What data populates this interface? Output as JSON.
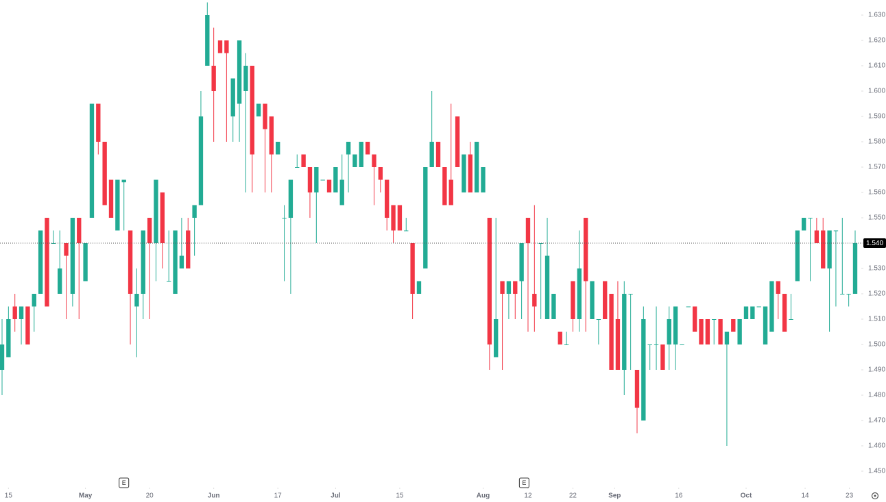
{
  "chart_data": {
    "type": "candlestick",
    "up_color": "#22ab94",
    "down_color": "#f23645",
    "open": [
      1.49,
      1.495,
      1.515,
      1.51,
      1.515,
      1.515,
      1.52,
      1.55,
      1.54,
      1.52,
      1.54,
      1.52,
      1.55,
      1.525,
      1.55,
      1.595,
      1.58,
      1.565,
      1.545,
      1.564,
      1.545,
      1.515,
      1.52,
      1.55,
      1.54,
      1.56,
      1.525,
      1.52,
      1.53,
      1.545,
      1.55,
      1.555,
      1.61,
      1.61,
      1.62,
      1.62,
      1.59,
      1.595,
      1.6,
      1.61,
      1.59,
      1.595,
      1.59,
      1.575,
      1.55,
      1.55,
      1.57,
      1.575,
      1.57,
      1.56,
      1.565,
      1.565,
      1.56,
      1.555,
      1.575,
      1.57,
      1.57,
      1.58,
      1.575,
      1.57,
      1.565,
      1.555,
      1.555,
      1.545,
      1.54,
      1.52,
      1.53,
      1.57,
      1.58,
      1.57,
      1.565,
      1.59,
      1.56,
      1.575,
      1.56,
      1.56,
      1.55,
      1.495,
      1.525,
      1.52,
      1.525,
      1.525,
      1.55,
      1.52,
      1.54,
      1.51,
      1.51,
      1.505,
      1.5,
      1.525,
      1.51,
      1.55,
      1.51,
      1.51,
      1.525,
      1.52,
      1.51,
      1.49,
      1.52,
      1.49,
      1.47,
      1.5,
      1.5,
      1.5,
      1.5,
      1.5,
      1.5,
      1.515,
      1.515,
      1.51,
      1.51,
      1.51,
      1.51,
      1.5,
      1.51,
      1.5,
      1.51,
      1.51,
      1.515,
      1.5,
      1.505,
      1.525,
      1.52,
      1.51,
      1.525,
      1.545,
      1.55,
      1.545,
      1.545,
      1.53,
      1.545,
      1.52,
      1.52,
      1.52
    ],
    "high": [
      1.51,
      1.515,
      1.52,
      1.515,
      1.515,
      1.52,
      1.545,
      1.55,
      1.545,
      1.545,
      1.54,
      1.55,
      1.55,
      1.54,
      1.595,
      1.595,
      1.58,
      1.565,
      1.565,
      1.565,
      1.545,
      1.53,
      1.545,
      1.55,
      1.565,
      1.56,
      1.545,
      1.545,
      1.55,
      1.55,
      1.555,
      1.6,
      1.635,
      1.625,
      1.62,
      1.62,
      1.605,
      1.62,
      1.615,
      1.61,
      1.595,
      1.595,
      1.59,
      1.58,
      1.555,
      1.565,
      1.575,
      1.575,
      1.57,
      1.57,
      1.565,
      1.565,
      1.57,
      1.575,
      1.58,
      1.575,
      1.58,
      1.58,
      1.575,
      1.57,
      1.565,
      1.555,
      1.555,
      1.55,
      1.54,
      1.525,
      1.57,
      1.6,
      1.58,
      1.57,
      1.595,
      1.59,
      1.575,
      1.58,
      1.58,
      1.57,
      1.55,
      1.55,
      1.525,
      1.525,
      1.525,
      1.54,
      1.55,
      1.555,
      1.54,
      1.55,
      1.52,
      1.505,
      1.505,
      1.525,
      1.545,
      1.55,
      1.525,
      1.51,
      1.525,
      1.52,
      1.525,
      1.525,
      1.52,
      1.49,
      1.515,
      1.5,
      1.515,
      1.5,
      1.515,
      1.515,
      1.5,
      1.515,
      1.515,
      1.51,
      1.51,
      1.51,
      1.51,
      1.505,
      1.51,
      1.51,
      1.515,
      1.515,
      1.515,
      1.515,
      1.525,
      1.525,
      1.52,
      1.52,
      1.545,
      1.55,
      1.55,
      1.55,
      1.55,
      1.545,
      1.545,
      1.55,
      1.52,
      1.545
    ],
    "low": [
      1.48,
      1.495,
      1.505,
      1.5,
      1.5,
      1.505,
      1.52,
      1.515,
      1.54,
      1.52,
      1.51,
      1.515,
      1.51,
      1.525,
      1.55,
      1.575,
      1.555,
      1.55,
      1.545,
      1.545,
      1.5,
      1.495,
      1.51,
      1.51,
      1.525,
      1.53,
      1.525,
      1.52,
      1.53,
      1.53,
      1.535,
      1.555,
      1.61,
      1.58,
      1.615,
      1.58,
      1.58,
      1.58,
      1.56,
      1.56,
      1.59,
      1.56,
      1.56,
      1.575,
      1.525,
      1.52,
      1.57,
      1.57,
      1.55,
      1.54,
      1.565,
      1.56,
      1.56,
      1.555,
      1.56,
      1.57,
      1.57,
      1.575,
      1.555,
      1.56,
      1.545,
      1.54,
      1.545,
      1.545,
      1.51,
      1.52,
      1.53,
      1.57,
      1.57,
      1.555,
      1.555,
      1.57,
      1.56,
      1.56,
      1.56,
      1.56,
      1.49,
      1.495,
      1.49,
      1.51,
      1.51,
      1.51,
      1.505,
      1.505,
      1.51,
      1.51,
      1.51,
      1.5,
      1.5,
      1.505,
      1.505,
      1.505,
      1.51,
      1.5,
      1.51,
      1.49,
      1.49,
      1.48,
      1.49,
      1.465,
      1.47,
      1.49,
      1.49,
      1.49,
      1.49,
      1.49,
      1.5,
      1.515,
      1.505,
      1.5,
      1.5,
      1.5,
      1.5,
      1.46,
      1.505,
      1.5,
      1.51,
      1.51,
      1.515,
      1.5,
      1.505,
      1.51,
      1.505,
      1.51,
      1.525,
      1.545,
      1.525,
      1.54,
      1.53,
      1.505,
      1.515,
      1.52,
      1.515,
      1.52
    ],
    "close": [
      1.5,
      1.51,
      1.51,
      1.515,
      1.5,
      1.52,
      1.545,
      1.515,
      1.54,
      1.53,
      1.535,
      1.55,
      1.54,
      1.54,
      1.595,
      1.58,
      1.555,
      1.55,
      1.565,
      1.565,
      1.52,
      1.52,
      1.545,
      1.54,
      1.565,
      1.54,
      1.525,
      1.545,
      1.535,
      1.53,
      1.555,
      1.59,
      1.63,
      1.6,
      1.615,
      1.615,
      1.605,
      1.62,
      1.61,
      1.575,
      1.595,
      1.585,
      1.575,
      1.58,
      1.55,
      1.565,
      1.57,
      1.57,
      1.56,
      1.57,
      1.565,
      1.56,
      1.57,
      1.565,
      1.58,
      1.575,
      1.58,
      1.575,
      1.57,
      1.565,
      1.55,
      1.545,
      1.545,
      1.545,
      1.52,
      1.525,
      1.57,
      1.58,
      1.57,
      1.555,
      1.555,
      1.57,
      1.575,
      1.56,
      1.58,
      1.57,
      1.5,
      1.51,
      1.52,
      1.525,
      1.52,
      1.54,
      1.54,
      1.515,
      1.54,
      1.535,
      1.52,
      1.5,
      1.5,
      1.51,
      1.53,
      1.525,
      1.525,
      1.51,
      1.51,
      1.49,
      1.49,
      1.52,
      1.52,
      1.475,
      1.51,
      1.5,
      1.5,
      1.49,
      1.51,
      1.515,
      1.5,
      1.515,
      1.505,
      1.5,
      1.5,
      1.51,
      1.5,
      1.505,
      1.505,
      1.51,
      1.515,
      1.515,
      1.515,
      1.515,
      1.525,
      1.52,
      1.505,
      1.51,
      1.545,
      1.55,
      1.55,
      1.54,
      1.53,
      1.545,
      1.545,
      1.52,
      1.52,
      1.54
    ],
    "xlim": [
      0,
      133
    ],
    "xticks": [
      {
        "value": 1,
        "label": "15"
      },
      {
        "value": 13,
        "label": "May"
      },
      {
        "value": 23,
        "label": "20"
      },
      {
        "value": 33,
        "label": "Jun"
      },
      {
        "value": 43,
        "label": "17"
      },
      {
        "value": 52,
        "label": "Jul"
      },
      {
        "value": 62,
        "label": "15"
      },
      {
        "value": 75,
        "label": "Aug"
      },
      {
        "value": 82,
        "label": "12"
      },
      {
        "value": 89,
        "label": "22"
      },
      {
        "value": 95.5,
        "label": "Sep"
      },
      {
        "value": 105.5,
        "label": "16"
      },
      {
        "value": 116,
        "label": "Oct"
      },
      {
        "value": 125.2,
        "label": "14"
      },
      {
        "value": 132.1,
        "label": "23"
      }
    ],
    "ylim": [
      1.45,
      1.63
    ],
    "yticks": [
      {
        "value": 1.45,
        "label": "1.450"
      },
      {
        "value": 1.46,
        "label": "1.460"
      },
      {
        "value": 1.47,
        "label": "1.470"
      },
      {
        "value": 1.48,
        "label": "1.480"
      },
      {
        "value": 1.49,
        "label": "1.490"
      },
      {
        "value": 1.5,
        "label": "1.500"
      },
      {
        "value": 1.51,
        "label": "1.510"
      },
      {
        "value": 1.52,
        "label": "1.520"
      },
      {
        "value": 1.53,
        "label": "1.530"
      },
      {
        "value": 1.54,
        "label": "1.540"
      },
      {
        "value": 1.55,
        "label": "1.550"
      },
      {
        "value": 1.56,
        "label": "1.560"
      },
      {
        "value": 1.57,
        "label": "1.570"
      },
      {
        "value": 1.58,
        "label": "1.580"
      },
      {
        "value": 1.59,
        "label": "1.590"
      },
      {
        "value": 1.6,
        "label": "1.600"
      },
      {
        "value": 1.61,
        "label": "1.610"
      },
      {
        "value": 1.62,
        "label": "1.620"
      },
      {
        "value": 1.63,
        "label": "1.630"
      }
    ],
    "last_price": {
      "value": 1.54,
      "label": "1.540"
    },
    "events": [
      {
        "x": 19,
        "label": "E"
      },
      {
        "x": 81.4,
        "label": "E"
      }
    ]
  }
}
